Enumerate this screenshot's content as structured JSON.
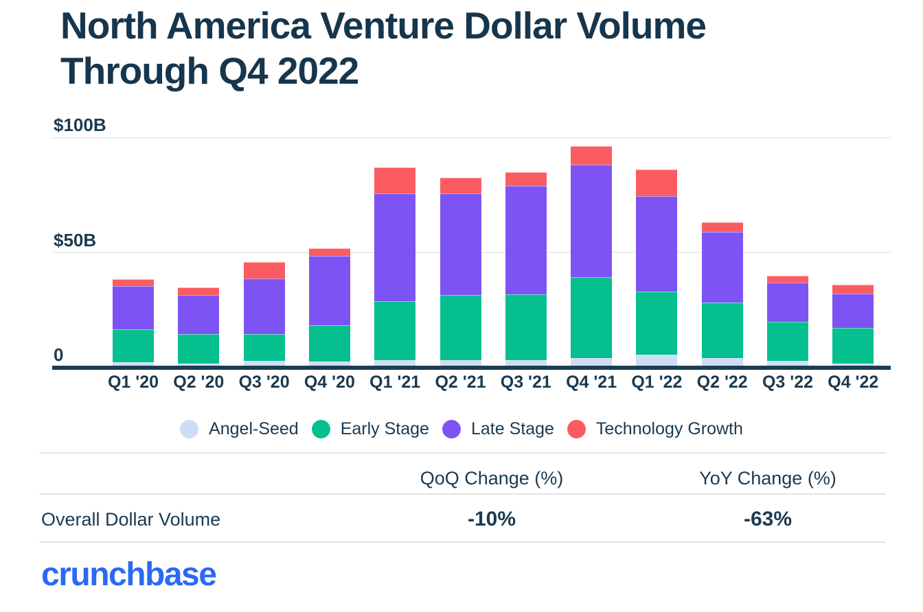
{
  "title": {
    "line1": "North America Venture Dollar Volume",
    "line2": "Through Q4 2022"
  },
  "chart_data": {
    "type": "bar",
    "stacked": true,
    "title": "North America Venture Dollar Volume Through Q4 2022",
    "unit": "USD billions",
    "ylim": [
      0,
      100
    ],
    "y_ticks": [
      "$100B",
      "$50B",
      "0"
    ],
    "grid": "horizontal",
    "legend_position": "bottom",
    "categories": [
      "Q1 '20",
      "Q2 '20",
      "Q3 '20",
      "Q4 '20",
      "Q1 '21",
      "Q2 '21",
      "Q3 '21",
      "Q4 '21",
      "Q1 '22",
      "Q2 '22",
      "Q3 '22",
      "Q4 '22"
    ],
    "series": [
      {
        "name": "Angel-Seed",
        "color": "#cfdcf6",
        "values": [
          3.3,
          2.8,
          3.8,
          3.5,
          4.1,
          4.2,
          4.2,
          5.0,
          6.4,
          5.0,
          3.8,
          2.8
        ]
      },
      {
        "name": "Early Stage",
        "color": "#05bf8f",
        "values": [
          14.2,
          12.7,
          11.7,
          15.8,
          25.5,
          28.2,
          28.5,
          35.1,
          27.5,
          24.1,
          17.1,
          15.2
        ]
      },
      {
        "name": "Late Stage",
        "color": "#7d54f3",
        "values": [
          18.7,
          17.0,
          24.0,
          30.0,
          46.8,
          43.9,
          46.8,
          48.7,
          41.4,
          30.5,
          16.8,
          14.9
        ]
      },
      {
        "name": "Technology Growth",
        "color": "#fb5c61",
        "values": [
          3.0,
          3.3,
          7.1,
          3.3,
          11.1,
          6.9,
          6.2,
          8.1,
          11.6,
          4.4,
          3.0,
          3.9
        ]
      }
    ],
    "totals": [
      39.2,
      35.8,
      46.6,
      52.6,
      87.5,
      83.2,
      85.7,
      96.9,
      86.9,
      64.0,
      40.7,
      36.8
    ]
  },
  "table": {
    "columns": [
      "QoQ Change (%)",
      "YoY Change (%)"
    ],
    "rows": [
      {
        "label": "Overall Dollar Volume",
        "qoq": "-10%",
        "yoy": "-63%"
      }
    ]
  },
  "footer": {
    "brand": "crunchbase"
  },
  "colors": {
    "title_text": "#16364d",
    "body_text": "#1b3a50",
    "axis_line": "#1d3c52",
    "gridline": "#e9edf0",
    "divider": "#e3e3e3",
    "brand_blue": "#2b69f5"
  }
}
